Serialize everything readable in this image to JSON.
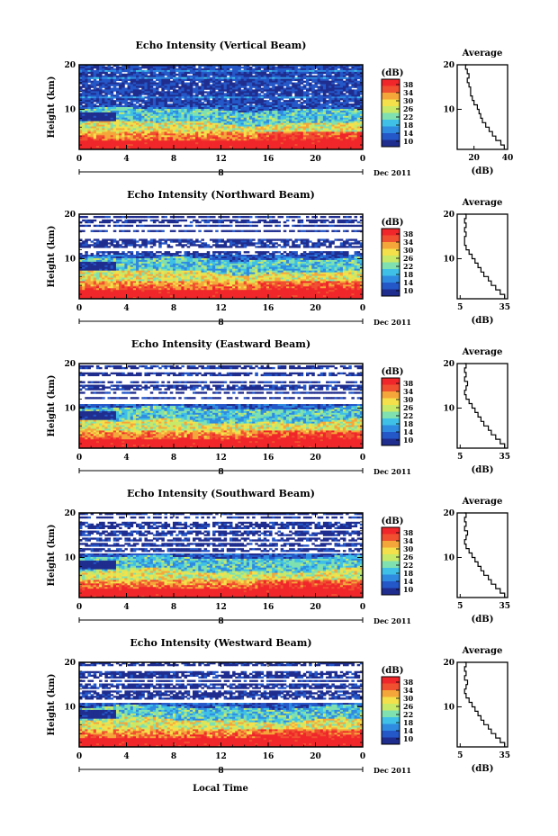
{
  "figure": {
    "date_label": "Dec 2011",
    "xlabel": "Local Time",
    "ylabel": "Height (km)",
    "colorbar_unit": "(dB)",
    "colorbar_ticks": [
      "38",
      "34",
      "30",
      "26",
      "22",
      "18",
      "14",
      "10"
    ],
    "average_title": "Average",
    "average_xlabel": "(dB)",
    "time_ticks": [
      "0",
      "4",
      "8",
      "12",
      "16",
      "20",
      "0"
    ],
    "date_marker": "8",
    "height_ticks": [
      "20",
      "10"
    ],
    "colormap": [
      "#1f2d8f",
      "#2457c8",
      "#2f8be0",
      "#3fc0e6",
      "#7fe0b0",
      "#c8e868",
      "#f4e04a",
      "#f5a63a",
      "#f05030",
      "#f0262a"
    ]
  },
  "panels": [
    {
      "title": "Echo Intensity (Vertical Beam)",
      "avg_xticks": [
        "20",
        "40"
      ]
    },
    {
      "title": "Echo Intensity (Northward Beam)",
      "avg_xticks": [
        "5",
        "35"
      ]
    },
    {
      "title": "Echo Intensity (Eastward Beam)",
      "avg_xticks": [
        "5",
        "35"
      ]
    },
    {
      "title": "Echo Intensity (Southward Beam)",
      "avg_xticks": [
        "5",
        "35"
      ]
    },
    {
      "title": "Echo Intensity (Westward Beam)",
      "avg_xticks": [
        "5",
        "35"
      ]
    }
  ],
  "chart_data": [
    {
      "type": "heatmap",
      "title": "Echo Intensity (Vertical Beam)",
      "xlabel": "",
      "ylabel": "Height (km)",
      "xlim_hours": [
        0,
        24
      ],
      "ylim_km": [
        1,
        20
      ],
      "color_range_dB": [
        10,
        38
      ],
      "colorbar_label": "(dB)",
      "note_structure": "strong echo (>30 dB) below ~5 km, weak above ~12 km"
    },
    {
      "type": "line",
      "title": "Average",
      "xlabel": "(dB)",
      "ylabel": "",
      "xlim": [
        10,
        40
      ],
      "ylim": [
        1,
        20
      ],
      "x": [
        38,
        36,
        33,
        31,
        29,
        27,
        25,
        24,
        23,
        22,
        20,
        19,
        18,
        18,
        17,
        16,
        17,
        16,
        15,
        16
      ],
      "y": [
        1,
        2,
        3,
        4,
        5,
        6,
        7,
        8,
        9,
        10,
        11,
        12,
        13,
        14,
        15,
        16,
        17,
        18,
        19,
        20
      ]
    },
    {
      "type": "heatmap",
      "title": "Echo Intensity (Northward Beam)",
      "xlabel": "",
      "ylabel": "Height (km)",
      "xlim_hours": [
        0,
        24
      ],
      "ylim_km": [
        1,
        20
      ],
      "color_range_dB": [
        10,
        38
      ],
      "colorbar_label": "(dB)"
    },
    {
      "type": "line",
      "title": "Average",
      "xlabel": "(dB)",
      "ylabel": "",
      "xlim": [
        3,
        37
      ],
      "ylim": [
        1,
        20
      ],
      "x": [
        35,
        32,
        29,
        26,
        24,
        21,
        19,
        17,
        15,
        13,
        11,
        9,
        8,
        8,
        9,
        8,
        9,
        8,
        9,
        8
      ],
      "y": [
        1,
        2,
        3,
        4,
        5,
        6,
        7,
        8,
        9,
        10,
        11,
        12,
        13,
        14,
        15,
        16,
        17,
        18,
        19,
        20
      ]
    },
    {
      "type": "heatmap",
      "title": "Echo Intensity (Eastward Beam)",
      "xlabel": "",
      "ylabel": "Height (km)",
      "xlim_hours": [
        0,
        24
      ],
      "ylim_km": [
        1,
        20
      ],
      "color_range_dB": [
        10,
        38
      ],
      "colorbar_label": "(dB)"
    },
    {
      "type": "line",
      "title": "Average",
      "xlabel": "(dB)",
      "ylabel": "",
      "xlim": [
        3,
        37
      ],
      "ylim": [
        1,
        20
      ],
      "x": [
        35,
        32,
        29,
        26,
        24,
        21,
        19,
        17,
        15,
        13,
        11,
        9,
        8,
        9,
        10,
        8,
        9,
        8,
        9,
        8
      ],
      "y": [
        1,
        2,
        3,
        4,
        5,
        6,
        7,
        8,
        9,
        10,
        11,
        12,
        13,
        14,
        15,
        16,
        17,
        18,
        19,
        20
      ]
    },
    {
      "type": "heatmap",
      "title": "Echo Intensity (Southward Beam)",
      "xlabel": "",
      "ylabel": "Height (km)",
      "xlim_hours": [
        0,
        24
      ],
      "ylim_km": [
        1,
        20
      ],
      "color_range_dB": [
        10,
        38
      ],
      "colorbar_label": "(dB)"
    },
    {
      "type": "line",
      "title": "Average",
      "xlabel": "(dB)",
      "ylabel": "",
      "xlim": [
        3,
        37
      ],
      "ylim": [
        1,
        20
      ],
      "x": [
        35,
        32,
        29,
        26,
        24,
        21,
        19,
        17,
        15,
        13,
        11,
        9,
        8,
        9,
        10,
        8,
        9,
        8,
        9,
        8
      ],
      "y": [
        1,
        2,
        3,
        4,
        5,
        6,
        7,
        8,
        9,
        10,
        11,
        12,
        13,
        14,
        15,
        16,
        17,
        18,
        19,
        20
      ]
    },
    {
      "type": "heatmap",
      "title": "Echo Intensity (Westward Beam)",
      "xlabel": "Local Time",
      "ylabel": "Height (km)",
      "xlim_hours": [
        0,
        24
      ],
      "ylim_km": [
        1,
        20
      ],
      "color_range_dB": [
        10,
        38
      ],
      "colorbar_label": "(dB)"
    },
    {
      "type": "line",
      "title": "Average",
      "xlabel": "(dB)",
      "ylabel": "",
      "xlim": [
        3,
        37
      ],
      "ylim": [
        1,
        20
      ],
      "x": [
        35,
        32,
        29,
        26,
        24,
        21,
        19,
        17,
        15,
        13,
        11,
        9,
        8,
        9,
        10,
        8,
        9,
        8,
        9,
        8
      ],
      "y": [
        1,
        2,
        3,
        4,
        5,
        6,
        7,
        8,
        9,
        10,
        11,
        12,
        13,
        14,
        15,
        16,
        17,
        18,
        19,
        20
      ]
    }
  ]
}
